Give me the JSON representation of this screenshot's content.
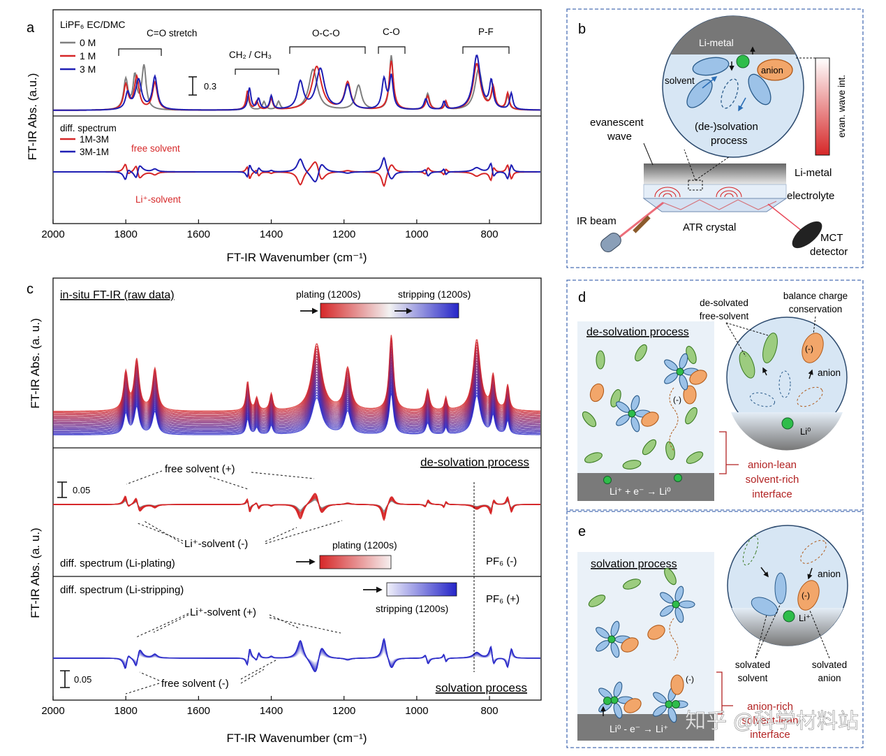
{
  "panel_letters": {
    "a": "a",
    "b": "b",
    "c": "c",
    "d": "d",
    "e": "e"
  },
  "colors": {
    "gray": "#7f7f7f",
    "red": "#d62728",
    "blue": "#1f1fb4",
    "dashed_border": "#4a6fb5",
    "diagram_bg": "#eaf1f8",
    "circle_bg": "#d7e6f4",
    "solvent": "#9cc2e8",
    "anion": "#f2a66a",
    "free": "#9ccc7f"
  },
  "panel_a": {
    "legend_title": "LiPF₆ EC/DMC",
    "legend": [
      "0 M",
      "1 M",
      "3 M"
    ],
    "band_labels": [
      "C=O stretch",
      "CH₂ / CH₃",
      "O-C-O",
      "C-O",
      "P-F"
    ],
    "scale_label": "0.3",
    "diff_title": "diff. spectrum",
    "diff_legend": [
      "1M-3M",
      "3M-1M"
    ],
    "annot_free": "free solvent",
    "annot_li": "Li⁺-solvent",
    "ylabel": "FT-IR Abs. (a.u.)",
    "xlabel": "FT-IR Wavenumber (cm⁻¹)",
    "xticks": [
      "2000",
      "1800",
      "1600",
      "1400",
      "1200",
      "1000",
      "800"
    ]
  },
  "panel_b": {
    "li_metal_top": "Li-metal",
    "anion": "anion",
    "solvent": "solvent",
    "desolv": "(de-)solvation",
    "process": "process",
    "evan_int": "evan. wave int.",
    "evanescent": "evanescent",
    "wave": "wave",
    "li_metal": "Li-metal",
    "electrolyte": "electrolyte",
    "ir_beam": "IR beam",
    "atr": "ATR crystal",
    "mct": "MCT",
    "detector": "detector"
  },
  "panel_c": {
    "raw_title": "in-situ FT-IR (raw data)",
    "plating_bar": "plating (1200s)",
    "stripping_bar": "stripping (1200s)",
    "desolv_title": "de-solvation process",
    "free_plus": "free solvent (+)",
    "li_minus": "Li⁺-solvent (-)",
    "scale1": "0.05",
    "plating2": "plating (1200s)",
    "diff_plating": "diff. spectrum (Li-plating)",
    "pf6_minus": "PF₆ (-)",
    "diff_stripping": "diff. spectrum (Li-stripping)",
    "stripping2": "stripping (1200s)",
    "pf6_plus": "PF₆ (+)",
    "li_plus": "Li⁺-solvent (+)",
    "free_minus": "free solvent (-)",
    "scale2": "0.05",
    "solv_title": "solvation process",
    "ylabel_top": "FT-IR Abs. (a. u.)",
    "ylabel_bottom": "FT-IR Abs. (a. u.)",
    "xlabel": "FT-IR Wavenumber (cm⁻¹)",
    "xticks": [
      "2000",
      "1800",
      "1600",
      "1400",
      "1200",
      "1000",
      "800"
    ]
  },
  "panel_d": {
    "title": "de-solvation process",
    "desolv_free": "de-solvated",
    "free_solvent": "free-solvent",
    "balance": "balance charge",
    "conservation": "conservation",
    "anion": "anion",
    "li0": "Li⁰",
    "minus": "(-)",
    "reaction": "Li⁺ + e⁻ → Li⁰",
    "interface": [
      "anion-lean",
      "solvent-rich",
      "interface"
    ]
  },
  "panel_e": {
    "title": "solvation process",
    "anion": "anion",
    "liplus": "Li⁺",
    "minus": "(-)",
    "solvated_solvent": [
      "solvated",
      "solvent"
    ],
    "solvated_anion": [
      "solvated",
      "anion"
    ],
    "reaction": "Li⁰ - e⁻ → Li⁺",
    "interface": [
      "anion-rich",
      "solvent-lean",
      "interface"
    ]
  },
  "watermark": "知乎 @科学材料站"
}
